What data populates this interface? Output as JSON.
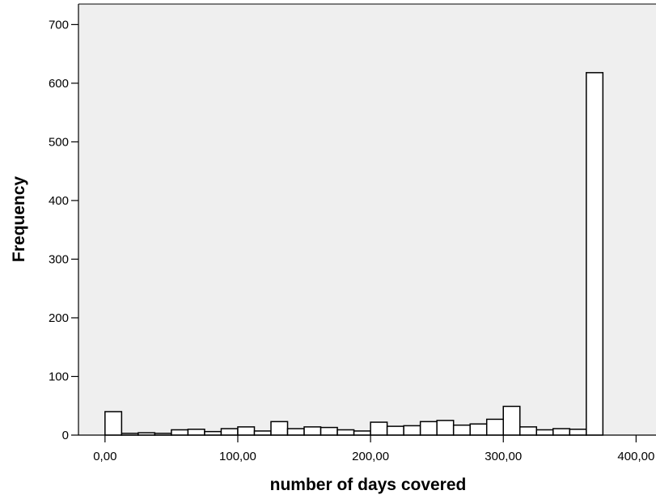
{
  "chart_data": {
    "type": "bar",
    "title": "",
    "xlabel": "number of days covered",
    "ylabel": "Frequency",
    "xlim": [
      -20,
      415
    ],
    "ylim": [
      0,
      735
    ],
    "x_ticks": [
      {
        "value": 0,
        "label": "0,00"
      },
      {
        "value": 100,
        "label": "100,00"
      },
      {
        "value": 200,
        "label": "200,00"
      },
      {
        "value": 300,
        "label": "300,00"
      },
      {
        "value": 400,
        "label": "400,00"
      }
    ],
    "y_ticks": [
      0,
      100,
      200,
      300,
      400,
      500,
      600,
      700
    ],
    "bin_width": 12.5,
    "bin_starts": [
      0,
      12.5,
      25,
      37.5,
      50,
      62.5,
      75,
      87.5,
      100,
      112.5,
      125,
      137.5,
      150,
      162.5,
      175,
      187.5,
      200,
      212.5,
      225,
      237.5,
      250,
      262.5,
      275,
      287.5,
      300,
      312.5,
      325,
      337.5,
      350,
      362.5
    ],
    "values": [
      40,
      3,
      4,
      3,
      9,
      10,
      6,
      11,
      14,
      7,
      23,
      11,
      14,
      13,
      9,
      7,
      22,
      15,
      16,
      23,
      25,
      17,
      19,
      27,
      49,
      14,
      9,
      11,
      10,
      618
    ],
    "grid": false,
    "legend": "none",
    "colors": {
      "plot_background": "#efefef",
      "bar_fill": "#ffffff",
      "bar_stroke": "#000000",
      "axis": "#000000"
    }
  }
}
